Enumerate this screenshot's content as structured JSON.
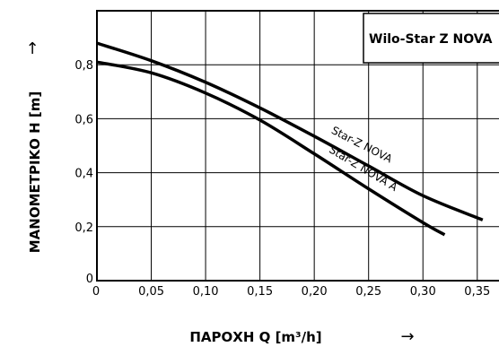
{
  "chart_data": {
    "type": "line",
    "title": "Wilo-Star Z NOVA",
    "xlabel": "ΠΑΡΟΧΗ Q [m³/h]",
    "ylabel": "ΜΑΝΟΜΕΤΡΙΚΟ H [m]",
    "x_arrow": "→",
    "y_arrow": "↑",
    "xlim": [
      0,
      0.37
    ],
    "ylim": [
      0,
      1.0
    ],
    "x_ticks": [
      0,
      0.05,
      0.1,
      0.15,
      0.2,
      0.25,
      0.3,
      0.35
    ],
    "x_tick_labels": [
      "0",
      "0,05",
      "0,10",
      "0,15",
      "0,20",
      "0,25",
      "0,30",
      "0,35"
    ],
    "y_ticks": [
      0,
      0.2,
      0.4,
      0.6,
      0.8
    ],
    "y_tick_labels": [
      "0",
      "0,2",
      "0,4",
      "0,6",
      "0,8"
    ],
    "grid": true,
    "series": [
      {
        "name": "Star-Z NOVA",
        "points": [
          [
            0,
            0.88
          ],
          [
            0.05,
            0.815
          ],
          [
            0.1,
            0.735
          ],
          [
            0.15,
            0.64
          ],
          [
            0.2,
            0.535
          ],
          [
            0.25,
            0.425
          ],
          [
            0.3,
            0.315
          ],
          [
            0.355,
            0.225
          ]
        ]
      },
      {
        "name": "Star-Z NOVA A",
        "points": [
          [
            0,
            0.81
          ],
          [
            0.05,
            0.77
          ],
          [
            0.1,
            0.695
          ],
          [
            0.15,
            0.595
          ],
          [
            0.2,
            0.47
          ],
          [
            0.25,
            0.34
          ],
          [
            0.3,
            0.215
          ],
          [
            0.32,
            0.17
          ]
        ]
      }
    ]
  }
}
